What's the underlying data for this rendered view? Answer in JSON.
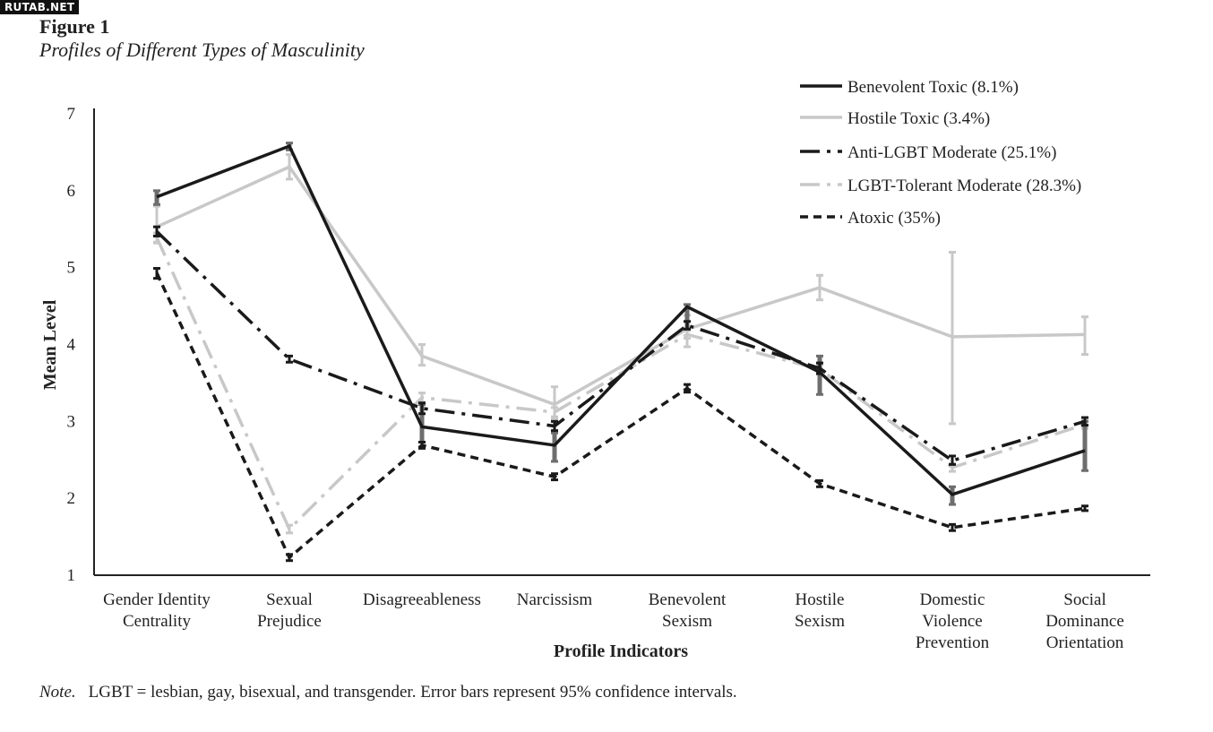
{
  "watermark": "RUTAB.NET",
  "figure_label": "Figure 1",
  "figure_title": "Profiles of Different Types of Masculinity",
  "note_label": "Note.",
  "note_text": "LGBT = lesbian, gay, bisexual, and transgender. Error bars represent 95% confidence intervals.",
  "chart_data": {
    "type": "line",
    "title": "Profiles of Different Types of Masculinity",
    "xlabel": "Profile Indicators",
    "ylabel": "Mean Level",
    "ylim": [
      1,
      7
    ],
    "yticks": [
      "1",
      "2",
      "3",
      "4",
      "5",
      "6",
      "7"
    ],
    "grid": false,
    "legend_position": "top-right",
    "categories": [
      [
        "Gender Identity",
        "Centrality"
      ],
      [
        "Sexual",
        "Prejudice"
      ],
      [
        "Disagreeableness"
      ],
      [
        "Narcissism"
      ],
      [
        "Benevolent",
        "Sexism"
      ],
      [
        "Hostile",
        "Sexism"
      ],
      [
        "Domestic",
        "Violence",
        "Prevention"
      ],
      [
        "Social",
        "Dominance",
        "Orientation"
      ]
    ],
    "series": [
      {
        "name": "Benevolent Toxic (8.1%)",
        "color": "#1a1a1a",
        "dash": "solid",
        "bar_color": "#6e6e6e",
        "values": [
          5.92,
          6.58,
          2.93,
          2.69,
          4.49,
          3.64,
          2.05,
          2.62
        ],
        "ci": [
          [
            5.82,
            6.0
          ],
          [
            6.53,
            6.62
          ],
          [
            2.73,
            3.22
          ],
          [
            2.48,
            2.85
          ],
          [
            4.2,
            4.52
          ],
          [
            3.35,
            3.85
          ],
          [
            1.92,
            2.15
          ],
          [
            2.36,
            3.0
          ]
        ]
      },
      {
        "name": "Hostile Toxic (3.4%)",
        "color": "#c8c8c8",
        "dash": "solid",
        "bar_color": "#c8c8c8",
        "values": [
          5.53,
          6.31,
          3.85,
          3.22,
          4.2,
          4.74,
          4.1,
          4.13
        ],
        "ci": [
          [
            5.32,
            5.8
          ],
          [
            6.15,
            6.47
          ],
          [
            3.73,
            4.0
          ],
          [
            3.03,
            3.45
          ],
          [
            3.97,
            4.38
          ],
          [
            4.58,
            4.9
          ],
          [
            2.97,
            5.2
          ],
          [
            3.87,
            4.36
          ]
        ]
      },
      {
        "name": "Anti-LGBT Moderate (25.1%)",
        "color": "#1a1a1a",
        "dash": "dashdot",
        "bar_color": "#1a1a1a",
        "values": [
          5.47,
          3.81,
          3.17,
          2.94,
          4.25,
          3.69,
          2.49,
          3.0
        ],
        "ci": [
          [
            5.41,
            5.53
          ],
          [
            3.77,
            3.85
          ],
          [
            3.1,
            3.24
          ],
          [
            2.88,
            3.0
          ],
          [
            4.2,
            4.3
          ],
          [
            3.62,
            3.76
          ],
          [
            2.44,
            2.55
          ],
          [
            2.95,
            3.05
          ]
        ]
      },
      {
        "name": "LGBT-Tolerant Moderate (28.3%)",
        "color": "#c8c8c8",
        "dash": "dashdot",
        "bar_color": "#c8c8c8",
        "values": [
          5.39,
          1.6,
          3.31,
          3.12,
          4.13,
          3.68,
          2.4,
          2.96
        ],
        "ci": [
          [
            5.33,
            5.45
          ],
          [
            1.55,
            1.65
          ],
          [
            3.25,
            3.37
          ],
          [
            3.06,
            3.18
          ],
          [
            4.08,
            4.18
          ],
          [
            3.62,
            3.74
          ],
          [
            2.35,
            2.45
          ],
          [
            2.91,
            3.01
          ]
        ]
      },
      {
        "name": "Atoxic (35%)",
        "color": "#1a1a1a",
        "dash": "dashed",
        "bar_color": "#1a1a1a",
        "values": [
          4.93,
          1.23,
          2.69,
          2.28,
          3.43,
          2.19,
          1.62,
          1.87
        ],
        "ci": [
          [
            4.86,
            4.99
          ],
          [
            1.19,
            1.27
          ],
          [
            2.65,
            2.73
          ],
          [
            2.24,
            2.32
          ],
          [
            3.38,
            3.48
          ],
          [
            2.15,
            2.23
          ],
          [
            1.58,
            1.66
          ],
          [
            1.84,
            1.9
          ]
        ]
      }
    ]
  }
}
